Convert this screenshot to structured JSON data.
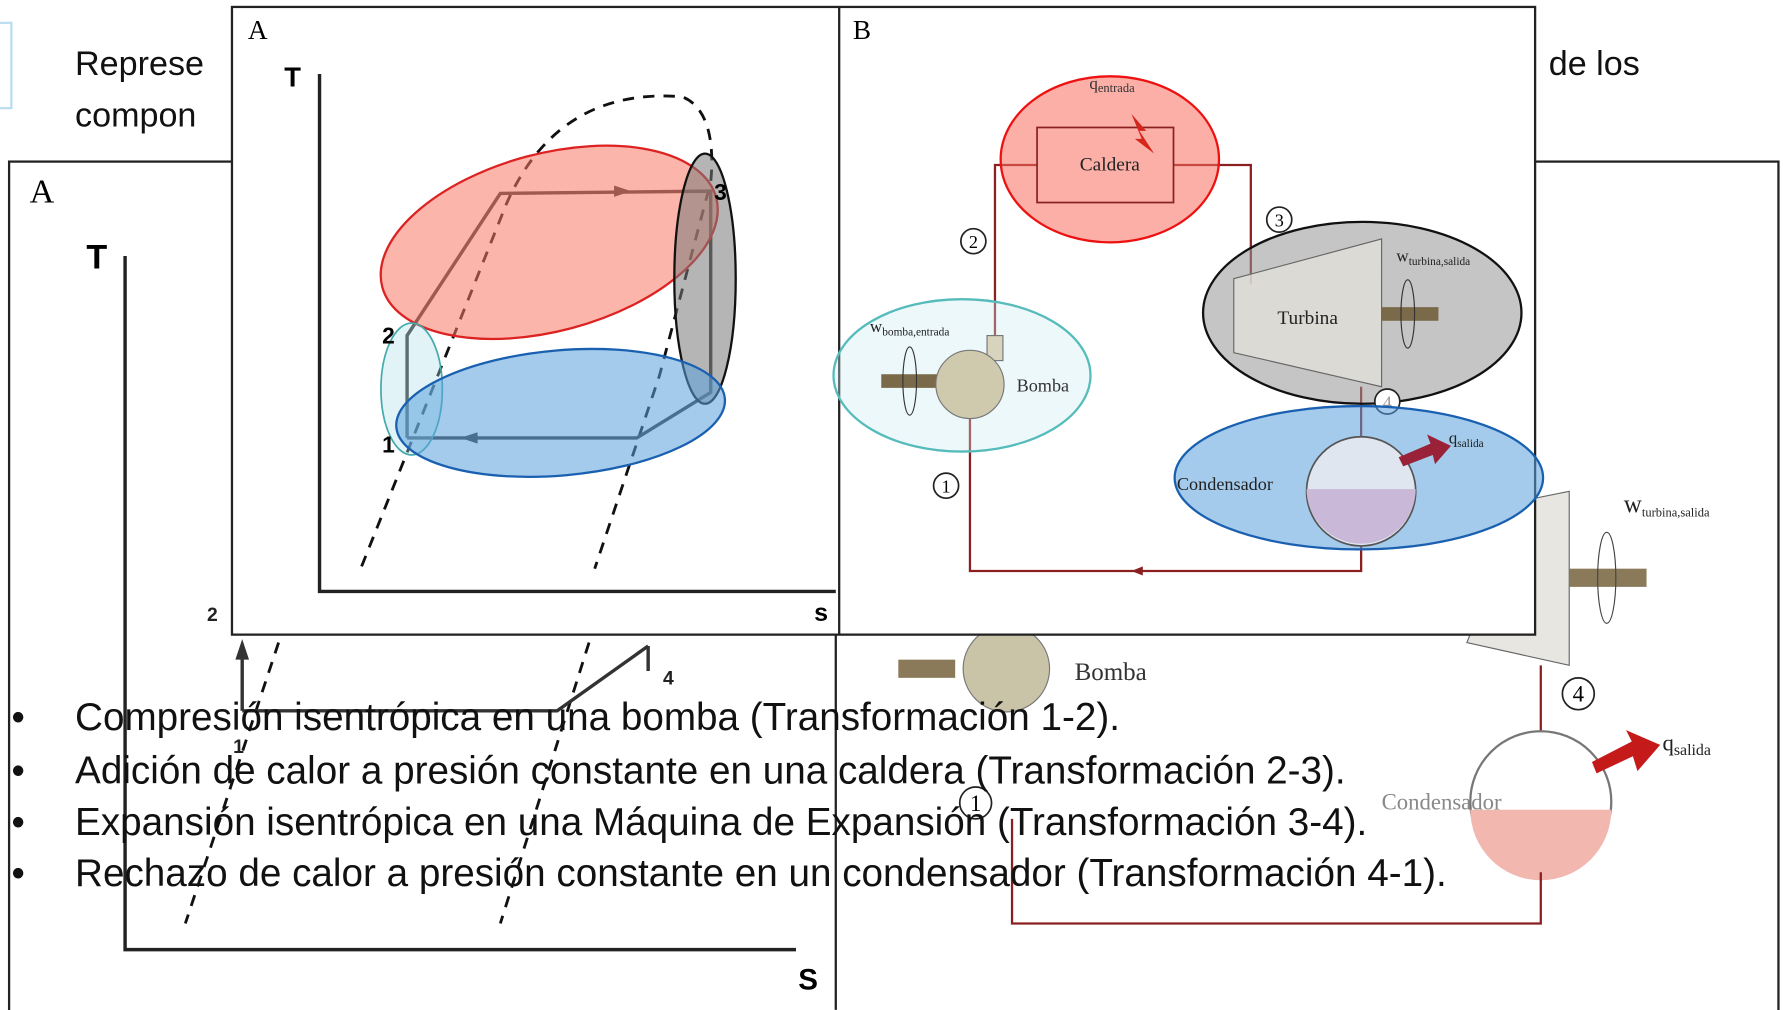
{
  "intro": [
    "Represe",
    "de los",
    "compon"
  ],
  "background": {
    "panel_a": {
      "label": "A",
      "y_axis": "T",
      "x_axis": "S",
      "state_2": "2",
      "state_1": "1",
      "state_4": "4"
    },
    "panel_b": {
      "pump": "Bomba",
      "condenser": "Condensador",
      "w_symbol": "w",
      "w_sub": "turbina,salida",
      "q_symbol": "q",
      "q_sub": "salida",
      "state_4": "4",
      "state_1": "1"
    }
  },
  "overlay": {
    "panel_a": {
      "label": "A",
      "y_axis": "T",
      "x_axis": "s",
      "state_1": "1",
      "state_2": "2",
      "state_3": "3"
    },
    "panel_b": {
      "label": "B",
      "q_in_symbol": "q",
      "q_in_sub": "entrada",
      "boiler": "Caldera",
      "state_2": "2",
      "state_3": "3",
      "w_t_symbol": "w",
      "w_t_sub": "turbina,salida",
      "turbine": "Turbina",
      "w_p_symbol": "w",
      "w_p_sub": "bomba,entrada",
      "pump": "Bomba",
      "condenser": "Condensador",
      "q_out_symbol": "q",
      "q_out_sub": "salida",
      "state_1": "1",
      "state_4": "4"
    }
  },
  "bullet": "•",
  "bullets": [
    "Compresión isentrópica en una bomba (Transformación 1-2).",
    "Adición de calor a presión constante en una caldera (Transformación 2-3).",
    "Expansión isentrópica en una Máquina de Expansión (Transformación 3-4).",
    "Rechazo de calor a presión constante en un condensador (Transformación 4-1)."
  ]
}
